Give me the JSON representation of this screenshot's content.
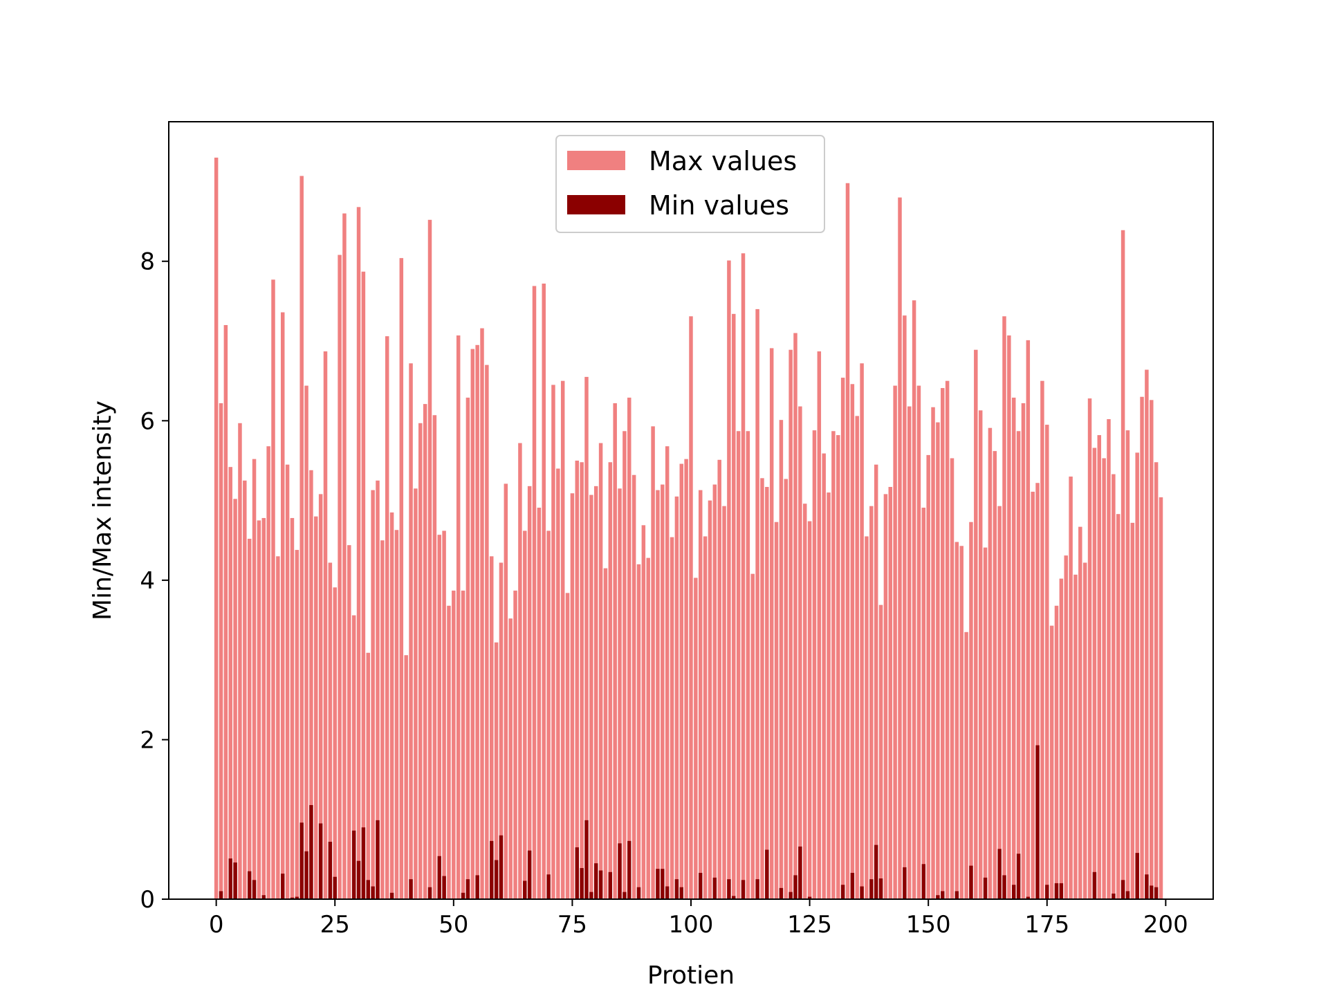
{
  "chart_data": {
    "type": "bar",
    "title": "",
    "xlabel": "Protien",
    "ylabel": "Min/Max intensity",
    "xlim": [
      -10,
      210
    ],
    "ylim": [
      0,
      9.75
    ],
    "x_ticks": [
      0,
      25,
      50,
      75,
      100,
      125,
      150,
      175,
      200
    ],
    "y_ticks": [
      0,
      2,
      4,
      6,
      8
    ],
    "grid": false,
    "legend_position": "top-center",
    "colors": {
      "max": "#f08080",
      "min": "#8b0000"
    },
    "series": [
      {
        "name": "Max values",
        "values": [
          9.3,
          6.22,
          7.2,
          5.42,
          5.02,
          5.97,
          5.25,
          4.52,
          5.52,
          4.75,
          4.78,
          5.68,
          7.77,
          4.3,
          7.36,
          5.45,
          4.78,
          4.38,
          9.07,
          6.44,
          5.38,
          4.8,
          5.08,
          6.87,
          4.22,
          3.91,
          8.08,
          8.6,
          4.44,
          3.56,
          8.68,
          7.87,
          3.09,
          5.13,
          5.25,
          4.5,
          7.06,
          4.85,
          4.63,
          8.04,
          3.06,
          6.72,
          5.15,
          5.97,
          6.21,
          8.52,
          6.07,
          4.57,
          4.62,
          3.68,
          3.87,
          7.07,
          3.87,
          6.29,
          6.9,
          6.95,
          7.16,
          6.7,
          4.3,
          3.22,
          4.22,
          5.21,
          3.52,
          3.87,
          5.72,
          4.62,
          5.18,
          7.69,
          4.91,
          7.72,
          4.62,
          6.45,
          5.4,
          6.5,
          3.84,
          5.09,
          5.5,
          5.48,
          6.55,
          5.07,
          5.18,
          5.72,
          4.15,
          5.48,
          6.22,
          5.15,
          5.87,
          6.29,
          5.32,
          4.2,
          4.69,
          4.28,
          5.93,
          5.13,
          5.2,
          5.68,
          4.54,
          5.05,
          5.46,
          5.52,
          7.31,
          4.03,
          5.13,
          4.55,
          5.0,
          5.2,
          5.51,
          4.93,
          8.01,
          7.34,
          5.87,
          8.1,
          5.87,
          4.08,
          7.4,
          5.28,
          5.17,
          6.91,
          4.73,
          6.01,
          5.27,
          6.89,
          7.1,
          6.18,
          4.96,
          4.74,
          5.88,
          6.87,
          5.59,
          5.1,
          5.87,
          5.82,
          6.54,
          8.98,
          6.46,
          6.06,
          6.72,
          4.55,
          4.93,
          5.45,
          3.69,
          5.08,
          5.17,
          6.44,
          8.8,
          7.32,
          6.18,
          7.51,
          6.44,
          4.91,
          5.57,
          6.17,
          5.98,
          6.41,
          6.5,
          5.53,
          4.48,
          4.43,
          3.35,
          4.73,
          6.89,
          6.13,
          4.41,
          5.91,
          5.62,
          4.93,
          7.31,
          7.07,
          6.29,
          5.87,
          6.22,
          7.01,
          5.11,
          5.22,
          6.5,
          5.95,
          3.43,
          3.68,
          4.02,
          4.31,
          5.3,
          4.07,
          4.67,
          4.22,
          6.28,
          5.66,
          5.82,
          5.53,
          6.02,
          5.33,
          4.83,
          8.39,
          5.88,
          4.72,
          5.6,
          6.3,
          6.64,
          6.26,
          5.48,
          5.04
        ]
      },
      {
        "name": "Min values",
        "values": [
          0.0,
          0.1,
          0.0,
          0.51,
          0.46,
          0.0,
          0.0,
          0.35,
          0.24,
          0.0,
          0.05,
          0.0,
          0.0,
          0.0,
          0.32,
          0.0,
          0.02,
          0.03,
          0.96,
          0.6,
          1.18,
          0.0,
          0.95,
          0.0,
          0.72,
          0.28,
          0.0,
          0.0,
          0.0,
          0.86,
          0.48,
          0.9,
          0.24,
          0.16,
          0.99,
          0.0,
          0.0,
          0.08,
          0.0,
          0.0,
          0.0,
          0.25,
          0.0,
          0.0,
          0.0,
          0.15,
          0.0,
          0.54,
          0.29,
          0.0,
          0.0,
          0.0,
          0.08,
          0.25,
          0.0,
          0.3,
          0.0,
          0.0,
          0.73,
          0.49,
          0.8,
          0.0,
          0.0,
          0.0,
          0.0,
          0.23,
          0.61,
          0.0,
          0.0,
          0.0,
          0.31,
          0.0,
          0.0,
          0.0,
          0.0,
          0.0,
          0.65,
          0.39,
          0.99,
          0.09,
          0.45,
          0.36,
          0.0,
          0.34,
          0.0,
          0.7,
          0.09,
          0.73,
          0.0,
          0.15,
          0.0,
          0.0,
          0.0,
          0.38,
          0.38,
          0.16,
          0.0,
          0.25,
          0.15,
          0.0,
          0.0,
          0.0,
          0.33,
          0.0,
          0.0,
          0.27,
          0.0,
          0.0,
          0.25,
          0.04,
          0.0,
          0.24,
          0.0,
          0.0,
          0.25,
          0.0,
          0.62,
          0.0,
          0.0,
          0.14,
          0.0,
          0.09,
          0.3,
          0.66,
          0.0,
          0.03,
          0.0,
          0.0,
          0.0,
          0.0,
          0.0,
          0.0,
          0.18,
          0.0,
          0.33,
          0.0,
          0.16,
          0.0,
          0.25,
          0.68,
          0.26,
          0.0,
          0.0,
          0.0,
          0.0,
          0.4,
          0.0,
          0.0,
          0.0,
          0.44,
          0.0,
          0.0,
          0.05,
          0.1,
          0.0,
          0.0,
          0.1,
          0.0,
          0.0,
          0.42,
          0.0,
          0.0,
          0.27,
          0.0,
          0.0,
          0.63,
          0.3,
          0.0,
          0.18,
          0.57,
          0.0,
          0.03,
          0.0,
          1.93,
          0.0,
          0.18,
          0.0,
          0.2,
          0.2,
          0.0,
          0.0,
          0.0,
          0.0,
          0.0,
          0.0,
          0.34,
          0.0,
          0.0,
          0.0,
          0.07,
          0.0,
          0.24,
          0.1,
          0.0,
          0.58,
          0.0,
          0.31,
          0.17,
          0.15,
          0.0
        ]
      }
    ]
  }
}
